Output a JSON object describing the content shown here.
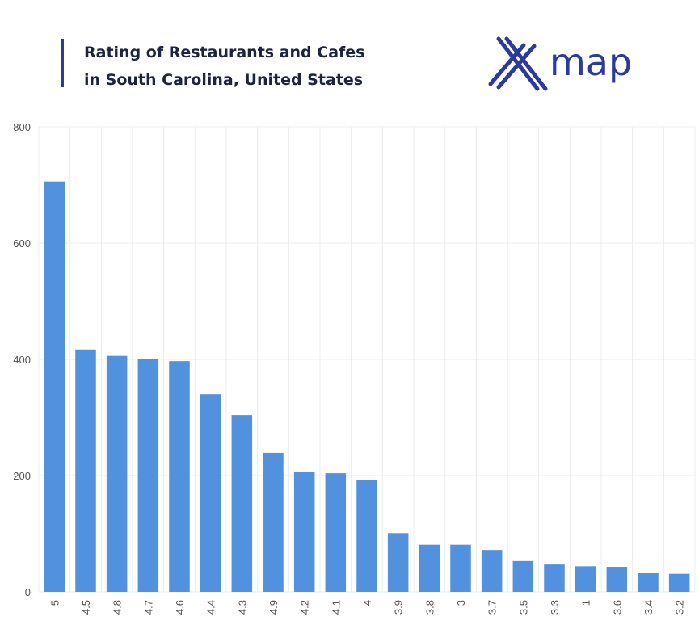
{
  "chart_data": {
    "type": "bar",
    "title": [
      "Rating of Restaurants and Cafes",
      "in South Carolina, United States"
    ],
    "logo": "map",
    "categories": [
      "5",
      "4.5",
      "4.8",
      "4.7",
      "4.6",
      "4.4",
      "4.3",
      "4.9",
      "4.2",
      "4.1",
      "4",
      "3.9",
      "3.8",
      "3",
      "3.7",
      "3.5",
      "3.3",
      "1",
      "3.6",
      "3.4",
      "3.2"
    ],
    "values": [
      706,
      417,
      406,
      401,
      397,
      340,
      304,
      239,
      207,
      204,
      192,
      101,
      81,
      81,
      72,
      53,
      47,
      44,
      43,
      33,
      31
    ],
    "color": "#5191de",
    "ylim": [
      0,
      800
    ],
    "yticks": [
      0,
      200,
      400,
      600,
      800
    ],
    "grid": true
  }
}
